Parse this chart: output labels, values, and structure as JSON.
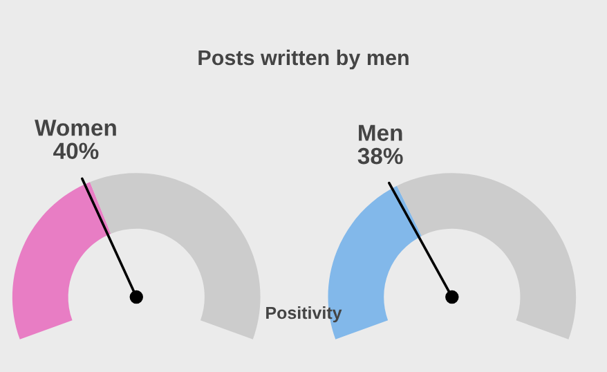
{
  "chart_data": [
    {
      "type": "donut",
      "title": "Posts written by men",
      "categories": [
        "Women",
        null
      ],
      "values": [
        40,
        60
      ],
      "colors": [
        "#e87dc4",
        "#cccccc"
      ],
      "needle": "Women",
      "value_labels": [
        "40%",
        null
      ],
      "annotations": [
        "Positivity"
      ]
    },
    {
      "type": "donut",
      "categories": [
        "Men",
        null
      ],
      "values": [
        38,
        62
      ],
      "colors": [
        "#82b8ea",
        "#cccccc"
      ],
      "needle": "Men",
      "value_labels": [
        "38%",
        null
      ]
    }
  ]
}
